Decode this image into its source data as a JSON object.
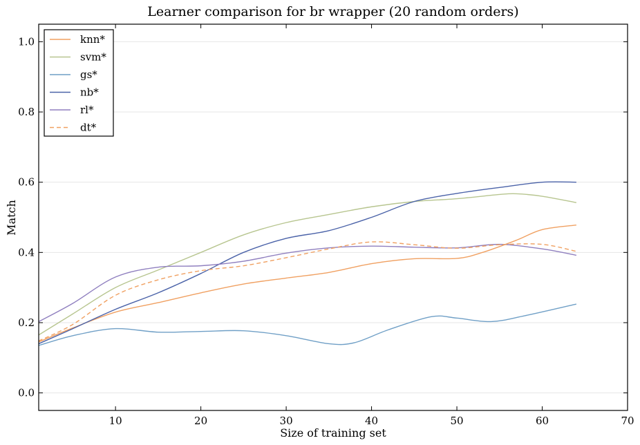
{
  "chart_data": {
    "type": "line",
    "title": "Learner comparison for br wrapper (20 random orders)",
    "xlabel": "Size of training set",
    "ylabel": "Match",
    "xlim": [
      1,
      70
    ],
    "ylim": [
      -0.05,
      1.05
    ],
    "xticks": [
      10,
      20,
      30,
      40,
      50,
      60,
      70
    ],
    "yticks": [
      0.0,
      0.2,
      0.4,
      0.6,
      0.8,
      1.0
    ],
    "ytick_labels": [
      "0.0",
      "0.2",
      "0.4",
      "0.6",
      "0.8",
      "1.0"
    ],
    "grid": "horizontal",
    "legend_position": "top-left",
    "series": [
      {
        "name": "knn*",
        "color": "#f0a061",
        "dash": "solid",
        "x": [
          1,
          5,
          10,
          15,
          20,
          25,
          30,
          35,
          40,
          45,
          50,
          53,
          57,
          60,
          64
        ],
        "y": [
          0.145,
          0.185,
          0.23,
          0.257,
          0.285,
          0.31,
          0.327,
          0.343,
          0.368,
          0.382,
          0.383,
          0.4,
          0.435,
          0.465,
          0.478
        ]
      },
      {
        "name": "svm*",
        "color": "#b7c58f",
        "dash": "solid",
        "x": [
          1,
          5,
          10,
          15,
          20,
          25,
          30,
          35,
          40,
          45,
          50,
          55,
          57,
          60,
          64
        ],
        "y": [
          0.165,
          0.225,
          0.3,
          0.35,
          0.4,
          0.45,
          0.485,
          0.508,
          0.53,
          0.545,
          0.553,
          0.565,
          0.567,
          0.56,
          0.542
        ]
      },
      {
        "name": "gs*",
        "color": "#6f9fc6",
        "dash": "solid",
        "x": [
          1,
          5,
          10,
          15,
          20,
          25,
          30,
          35,
          38,
          42,
          47,
          50,
          54,
          58,
          64
        ],
        "y": [
          0.135,
          0.163,
          0.183,
          0.173,
          0.175,
          0.177,
          0.163,
          0.14,
          0.143,
          0.18,
          0.217,
          0.213,
          0.203,
          0.22,
          0.253
        ]
      },
      {
        "name": "nb*",
        "color": "#4a62a8",
        "dash": "solid",
        "x": [
          1,
          5,
          10,
          15,
          20,
          25,
          30,
          35,
          40,
          45,
          50,
          55,
          60,
          64
        ],
        "y": [
          0.14,
          0.183,
          0.238,
          0.285,
          0.34,
          0.4,
          0.44,
          0.462,
          0.5,
          0.545,
          0.568,
          0.585,
          0.6,
          0.6
        ]
      },
      {
        "name": "rl*",
        "color": "#8f7fbf",
        "dash": "solid",
        "x": [
          1,
          5,
          10,
          15,
          20,
          25,
          30,
          35,
          40,
          45,
          50,
          55,
          60,
          64
        ],
        "y": [
          0.203,
          0.255,
          0.33,
          0.358,
          0.362,
          0.375,
          0.398,
          0.413,
          0.418,
          0.415,
          0.413,
          0.423,
          0.41,
          0.392
        ]
      },
      {
        "name": "dt*",
        "color": "#f0a061",
        "dash": "dashed",
        "x": [
          1,
          5,
          10,
          15,
          20,
          25,
          30,
          35,
          40,
          45,
          50,
          55,
          60,
          64
        ],
        "y": [
          0.148,
          0.195,
          0.278,
          0.322,
          0.348,
          0.362,
          0.385,
          0.41,
          0.43,
          0.422,
          0.412,
          0.422,
          0.423,
          0.403
        ]
      }
    ]
  }
}
